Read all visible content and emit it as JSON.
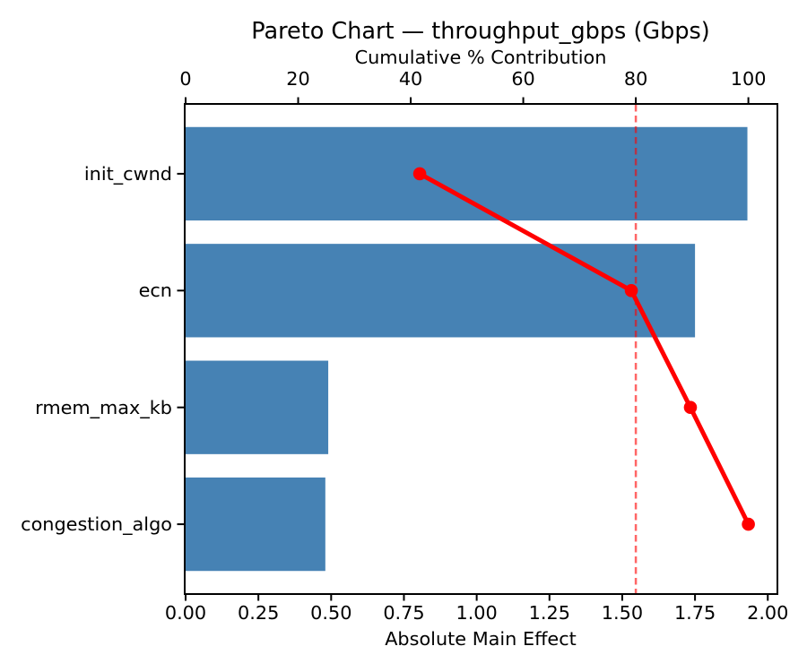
{
  "chart_data": {
    "type": "pareto",
    "title": "Pareto Chart — throughput_gbps (Gbps)",
    "categories": [
      "init_cwnd",
      "ecn",
      "rmem_max_kb",
      "congestion_algo"
    ],
    "series": [
      {
        "name": "Absolute Main Effect",
        "type": "bar",
        "values": [
          1.93,
          1.75,
          0.49,
          0.48
        ]
      },
      {
        "name": "Cumulative % Contribution",
        "type": "line",
        "values": [
          41.6,
          79.2,
          89.7,
          100.0
        ]
      }
    ],
    "threshold_pct": 80,
    "bottom_axis": {
      "label": "Absolute Main Effect",
      "ticks": [
        "0.00",
        "0.25",
        "0.50",
        "0.75",
        "1.00",
        "1.25",
        "1.50",
        "1.75",
        "2.00"
      ],
      "range": [
        0,
        2.03
      ]
    },
    "top_axis": {
      "label": "Cumulative % Contribution",
      "ticks": [
        "0",
        "20",
        "40",
        "60",
        "80",
        "100"
      ],
      "range": [
        0,
        105
      ]
    },
    "legend": "none",
    "grid": "off",
    "colors": {
      "bar": "#4682b4",
      "line": "#ff0000",
      "marker": "#ff0000",
      "threshold_line": "#ff0000",
      "threshold_opacity": "0.6",
      "spine": "#000000",
      "text": "#000000",
      "background": "#ffffff"
    }
  }
}
